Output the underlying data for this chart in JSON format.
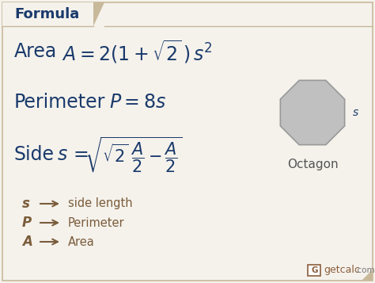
{
  "bg_color": "#f0ece4",
  "header_bg": "#ffffff",
  "header_text": "Formula",
  "header_text_color": "#1a3a6b",
  "main_bg": "#f5f2ec",
  "formula_color": "#1a3a6b",
  "label_color": "#7a5c3a",
  "arrow_color": "#7a5c3a",
  "octagon_fill": "#c0c0c0",
  "octagon_edge": "#999999",
  "octagon_label": "Octagon",
  "octagon_label_color": "#555555",
  "side_label": "s",
  "legend_items": [
    {
      "symbol": "s",
      "desc": "side length"
    },
    {
      "symbol": "P",
      "desc": "Perimeter"
    },
    {
      "symbol": "A",
      "desc": "Area"
    }
  ],
  "brand_text": "getcalc",
  "brand_suffix": ".com",
  "brand_color": "#8b5e3c",
  "border_color": "#c8b99a",
  "tab_color": "#c8b99a",
  "header_border_color": "#c8b99a"
}
